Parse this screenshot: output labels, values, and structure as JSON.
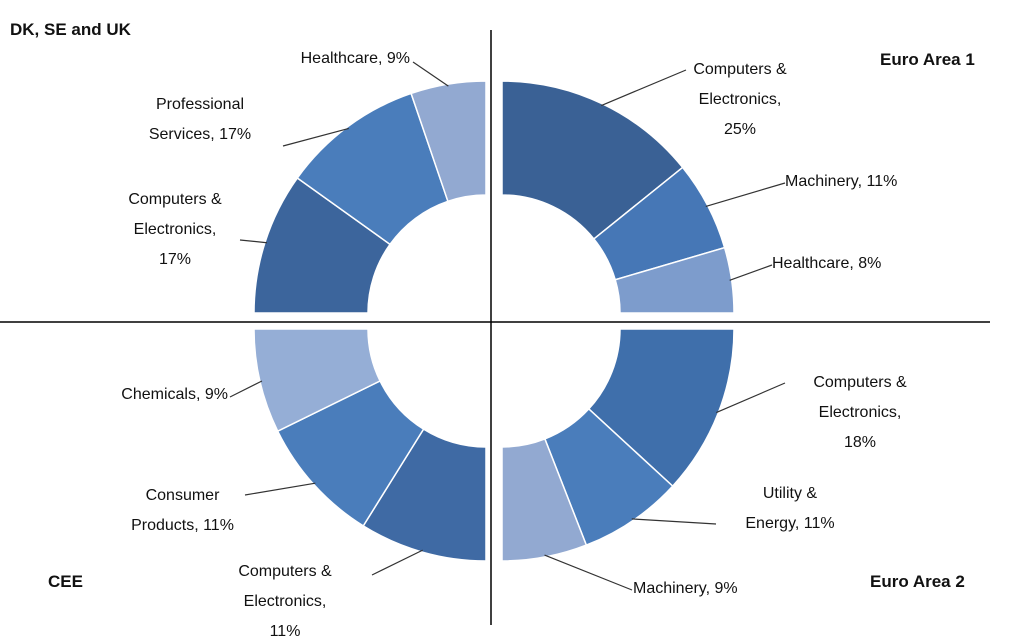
{
  "chart_data": [
    {
      "type": "donut",
      "title": "DK, SE and UK",
      "values": [
        17,
        17,
        9
      ],
      "value_labels": [
        "Computers & Electronics, 17%",
        "Professional Services, 17%",
        "Healthcare, 9%"
      ],
      "colors": [
        "#3c659c",
        "#4a7dbb",
        "#92a9d1"
      ]
    },
    {
      "type": "donut",
      "title": "Euro Area 1",
      "values": [
        25,
        11,
        8
      ],
      "value_labels": [
        "Computers & Electronics, 25%",
        "Machinery, 11%",
        "Healthcare, 8%"
      ],
      "colors": [
        "#3a6195",
        "#4677b6",
        "#7d9ccc"
      ]
    },
    {
      "type": "donut",
      "title": "CEE",
      "values": [
        11,
        11,
        9
      ],
      "value_labels": [
        "Computers & Electronics, 11%",
        "Consumer Products, 11%",
        "Chemicals, 9%"
      ],
      "colors": [
        "#3f6aa4",
        "#4a7dbb",
        "#95aed6"
      ]
    },
    {
      "type": "donut",
      "title": "Euro Area 2",
      "values": [
        18,
        11,
        9
      ],
      "value_labels": [
        "Computers & Electronics, 18%",
        "Utility & Energy, 11%",
        "Machinery, 9%"
      ],
      "colors": [
        "#3f6fab",
        "#4a7dbb",
        "#92a9d1"
      ]
    }
  ]
}
